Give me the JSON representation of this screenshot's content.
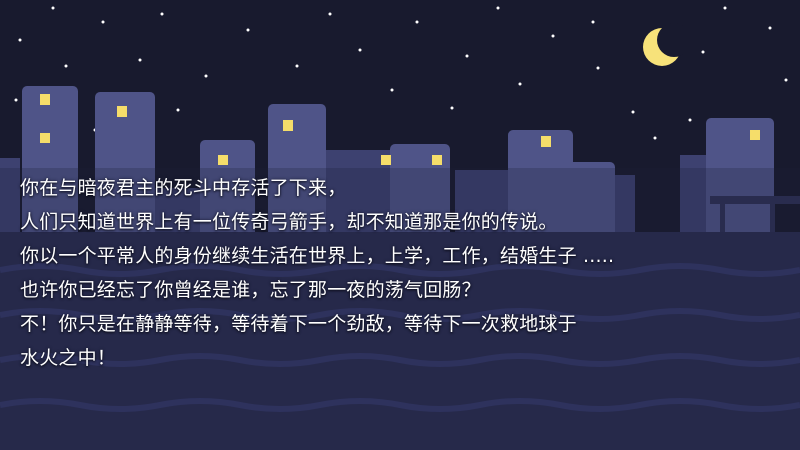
{
  "scene": {
    "description_icons": [
      "crescent-moon-icon",
      "star-icon",
      "city-building-icon",
      "lit-window-icon"
    ],
    "colors": {
      "sky": "#181a2e",
      "stars": "#ffffff",
      "moon": "#f7e27a",
      "window_lit": "#f5dd6a",
      "building_near": "#4f5488",
      "building_far": "#3d4170",
      "ground": "#2a2d50",
      "text": "#ffffff"
    }
  },
  "story": {
    "lines": [
      "你在与暗夜君主的死斗中存活了下来，",
      "人们只知道世界上有一位传奇弓箭手，却不知道那是你的传说。",
      "你以一个平常人的身份继续生活在世界上，上学，工作，结婚生子 .....",
      "也许你已经忘了你曾经是谁，忘了那一夜的荡气回肠？",
      "不！你只是在静静等待，等待着下一个劲敌，等待下一次救地球于",
      "水火之中！"
    ]
  }
}
